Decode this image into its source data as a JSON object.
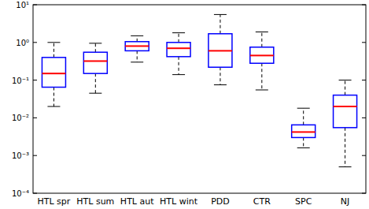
{
  "chart_data": {
    "type": "box",
    "log": "y",
    "color": "#0000ff",
    "categories": [
      "HTL spr",
      "HTL sum",
      "HTL aut",
      "HTL wint",
      "PDD",
      "CTR",
      "SPC",
      "NJ"
    ],
    "min": [
      0.02,
      0.045,
      0.3,
      0.14,
      0.075,
      0.055,
      0.0016,
      0.0005
    ],
    "q1": [
      0.065,
      0.15,
      0.6,
      0.42,
      0.22,
      0.28,
      0.003,
      0.0055
    ],
    "median": [
      0.15,
      0.32,
      0.8,
      0.7,
      0.6,
      0.45,
      0.0042,
      0.02
    ],
    "q3": [
      0.4,
      0.55,
      1.05,
      1.0,
      1.7,
      0.75,
      0.0065,
      0.04
    ],
    "max": [
      1.0,
      0.95,
      1.5,
      1.8,
      5.5,
      1.9,
      0.018,
      0.1
    ],
    "ylim": [
      0.0001,
      10
    ],
    "yticks": [
      {
        "value": 0.0001,
        "label": "10⁻⁴"
      },
      {
        "value": 0.001,
        "label": "10⁻³"
      },
      {
        "value": 0.01,
        "label": "10⁻²"
      },
      {
        "value": 0.1,
        "label": "10⁻¹"
      },
      {
        "value": 1,
        "label": "10⁰"
      },
      {
        "value": 10,
        "label": "10¹"
      }
    ]
  }
}
